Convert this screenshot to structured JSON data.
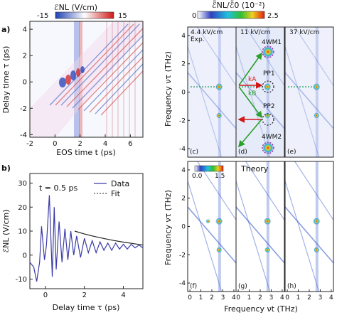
{
  "chart_data": [
    {
      "type": "heatmap",
      "panel": "a)",
      "colorbar_label": "ℰNL (V/cm)",
      "colorbar_ticks": [
        "-15",
        "15"
      ],
      "colors": {
        "neg": "#1f3fb3",
        "zero": "#ffffff",
        "pos": "#d01818"
      },
      "xlabel": "EOS time t (ps)",
      "ylabel": "Delay time τ (ps)",
      "xlim": [
        -2,
        7
      ],
      "ylim": [
        4.6,
        -4.2
      ],
      "xticks": [
        "-2",
        "0",
        "2",
        "4",
        "6"
      ],
      "yticks": [
        "-4",
        "-2",
        "0",
        "2",
        "4"
      ]
    },
    {
      "type": "line",
      "panel": "b)",
      "annotation": "t = 0.5 ps",
      "legend": [
        "Data",
        "Fit"
      ],
      "legend_position": "top-right",
      "colors": {
        "data": "#3a3aa8",
        "fit": "#222222"
      },
      "xlabel": "Delay time τ (ps)",
      "ylabel": "ℰNL (V/cm)",
      "xlim": [
        -0.8,
        5.0
      ],
      "ylim": [
        -14,
        34
      ],
      "xticks": [
        "0",
        "2",
        "4"
      ],
      "yticks": [
        "-10",
        "0",
        "10",
        "20",
        "30"
      ],
      "series": [
        {
          "name": "Data",
          "x": [
            -0.8,
            -0.6,
            -0.45,
            -0.3,
            -0.2,
            -0.05,
            0.05,
            0.2,
            0.35,
            0.45,
            0.55,
            0.7,
            0.85,
            1.0,
            1.15,
            1.3,
            1.45,
            1.6,
            1.8,
            2.0,
            2.2,
            2.4,
            2.6,
            2.8,
            3.0,
            3.2,
            3.4,
            3.6,
            3.8,
            4.0,
            4.2,
            4.4,
            4.6,
            4.8,
            5.0
          ],
          "y": [
            -3,
            -5,
            -11,
            -3,
            12,
            -2,
            4,
            25,
            -9,
            20,
            -6,
            14,
            -3,
            11,
            -2,
            10,
            0,
            8,
            -1,
            7,
            1,
            6,
            1,
            5.5,
            2,
            5,
            2,
            5,
            2.5,
            4.5,
            2.5,
            4.5,
            3,
            4.2,
            3
          ]
        },
        {
          "name": "Fit",
          "x": [
            1.5,
            2,
            2.5,
            3,
            3.5,
            4,
            4.5,
            5
          ],
          "y": [
            10,
            8.8,
            7.8,
            6.9,
            6.1,
            5.4,
            4.8,
            4.2
          ]
        }
      ]
    },
    {
      "type": "heatmap",
      "panels": [
        "(c)",
        "(d)",
        "(e)",
        "(f)",
        "(g)",
        "(h)"
      ],
      "colorbar_label": "ℰ̃NL/ℰ̃0 (10⁻²)",
      "colorbar_ticks": [
        "0",
        "2.5"
      ],
      "theory_colorbar_ticks": [
        "0.0",
        "1.5"
      ],
      "column_labels": [
        "4.4 kV/cm",
        "11 kV/cm",
        "37 kV/cm"
      ],
      "exp_label": "Exp.",
      "theory_label": "Theory",
      "peak_labels": [
        "4WM1",
        "PP1",
        "PP2",
        "4WM2"
      ],
      "wavevector_labels": [
        "kA",
        "kB"
      ],
      "xlabel": "Frequency νt (THz)",
      "ylabel": "Frequency ντ (THz)",
      "xticks": [
        "0",
        "1",
        "2",
        "3",
        "4"
      ],
      "yticks": [
        "4",
        "2",
        "0",
        "-2",
        "-4"
      ],
      "colors": {
        "blue": "#2f52c8",
        "green": "#2aa02a",
        "red": "#d01818",
        "marker": "#9a1a9a"
      }
    }
  ]
}
